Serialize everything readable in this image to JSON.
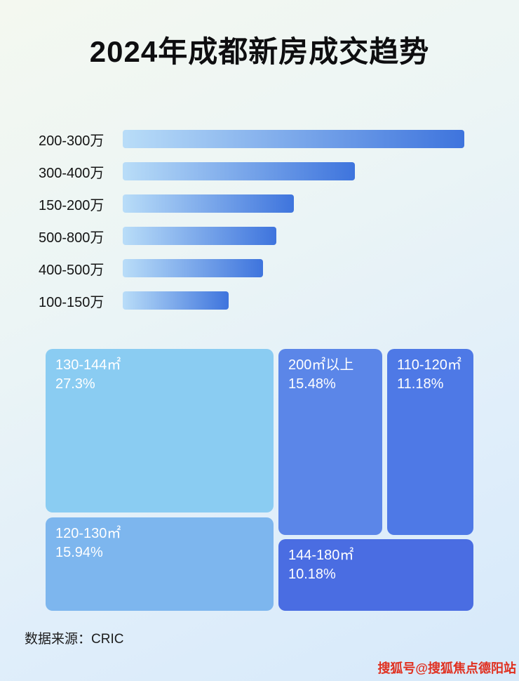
{
  "title": "2024年成都新房成交趋势",
  "source": "数据来源：CRIC",
  "watermark": "搜狐号@搜狐焦点德阳站",
  "colors": {
    "bar_gradient_start": "#b9ddf8",
    "bar_gradient_end": "#3e74dd",
    "watermark_red": "#e03020"
  },
  "chart_data": [
    {
      "type": "bar",
      "orientation": "horizontal",
      "title": "2024年成都新房成交趋势",
      "categories": [
        "200-300万",
        "300-400万",
        "150-200万",
        "500-800万",
        "400-500万",
        "100-150万"
      ],
      "values": [
        100,
        68,
        50,
        45,
        41,
        31
      ],
      "values_note": "relative bar lengths as % of longest bar; no numeric axis shown",
      "xlabel": "",
      "ylabel": "",
      "grid": false,
      "legend": false
    },
    {
      "type": "treemap",
      "items": [
        {
          "label": "130-144㎡",
          "value": "27.3%",
          "color": "#8accf2"
        },
        {
          "label": "200㎡以上",
          "value": "15.48%",
          "color": "#5b86e8"
        },
        {
          "label": "110-120㎡",
          "value": "11.18%",
          "color": "#4e79e6"
        },
        {
          "label": "120-130㎡",
          "value": "15.94%",
          "color": "#7db6ee"
        },
        {
          "label": "144-180㎡",
          "value": "10.18%",
          "color": "#4a6de2"
        }
      ]
    }
  ]
}
